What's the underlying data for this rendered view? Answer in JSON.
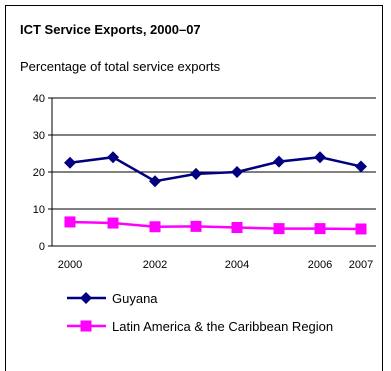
{
  "title": "ICT Service Exports, 2000–07",
  "subtitle": "Percentage of total service exports",
  "chart_data": {
    "type": "line",
    "title": "ICT Service Exports, 2000–07",
    "subtitle": "Percentage of total service exports",
    "xlabel": "",
    "ylabel": "",
    "x": [
      2000,
      2001,
      2002,
      2003,
      2004,
      2005,
      2006,
      2007
    ],
    "x_tick_labels": [
      "2000",
      "2002",
      "2004",
      "2006",
      "2007"
    ],
    "x_tick_values": [
      2000,
      2002,
      2004,
      2006,
      2007
    ],
    "ylim": [
      0,
      40
    ],
    "y_ticks": [
      0,
      10,
      20,
      30,
      40
    ],
    "grid": "horizontal",
    "legend_position": "bottom",
    "series": [
      {
        "name": "Guyana",
        "color": "#000080",
        "marker": "diamond",
        "values": [
          22.5,
          24.0,
          17.5,
          19.5,
          20.0,
          22.8,
          24.0,
          21.5
        ]
      },
      {
        "name": "Latin America & the Caribbean Region",
        "color": "#FF00FF",
        "marker": "square",
        "values": [
          6.5,
          6.2,
          5.2,
          5.3,
          5.0,
          4.7,
          4.7,
          4.6
        ]
      }
    ]
  }
}
